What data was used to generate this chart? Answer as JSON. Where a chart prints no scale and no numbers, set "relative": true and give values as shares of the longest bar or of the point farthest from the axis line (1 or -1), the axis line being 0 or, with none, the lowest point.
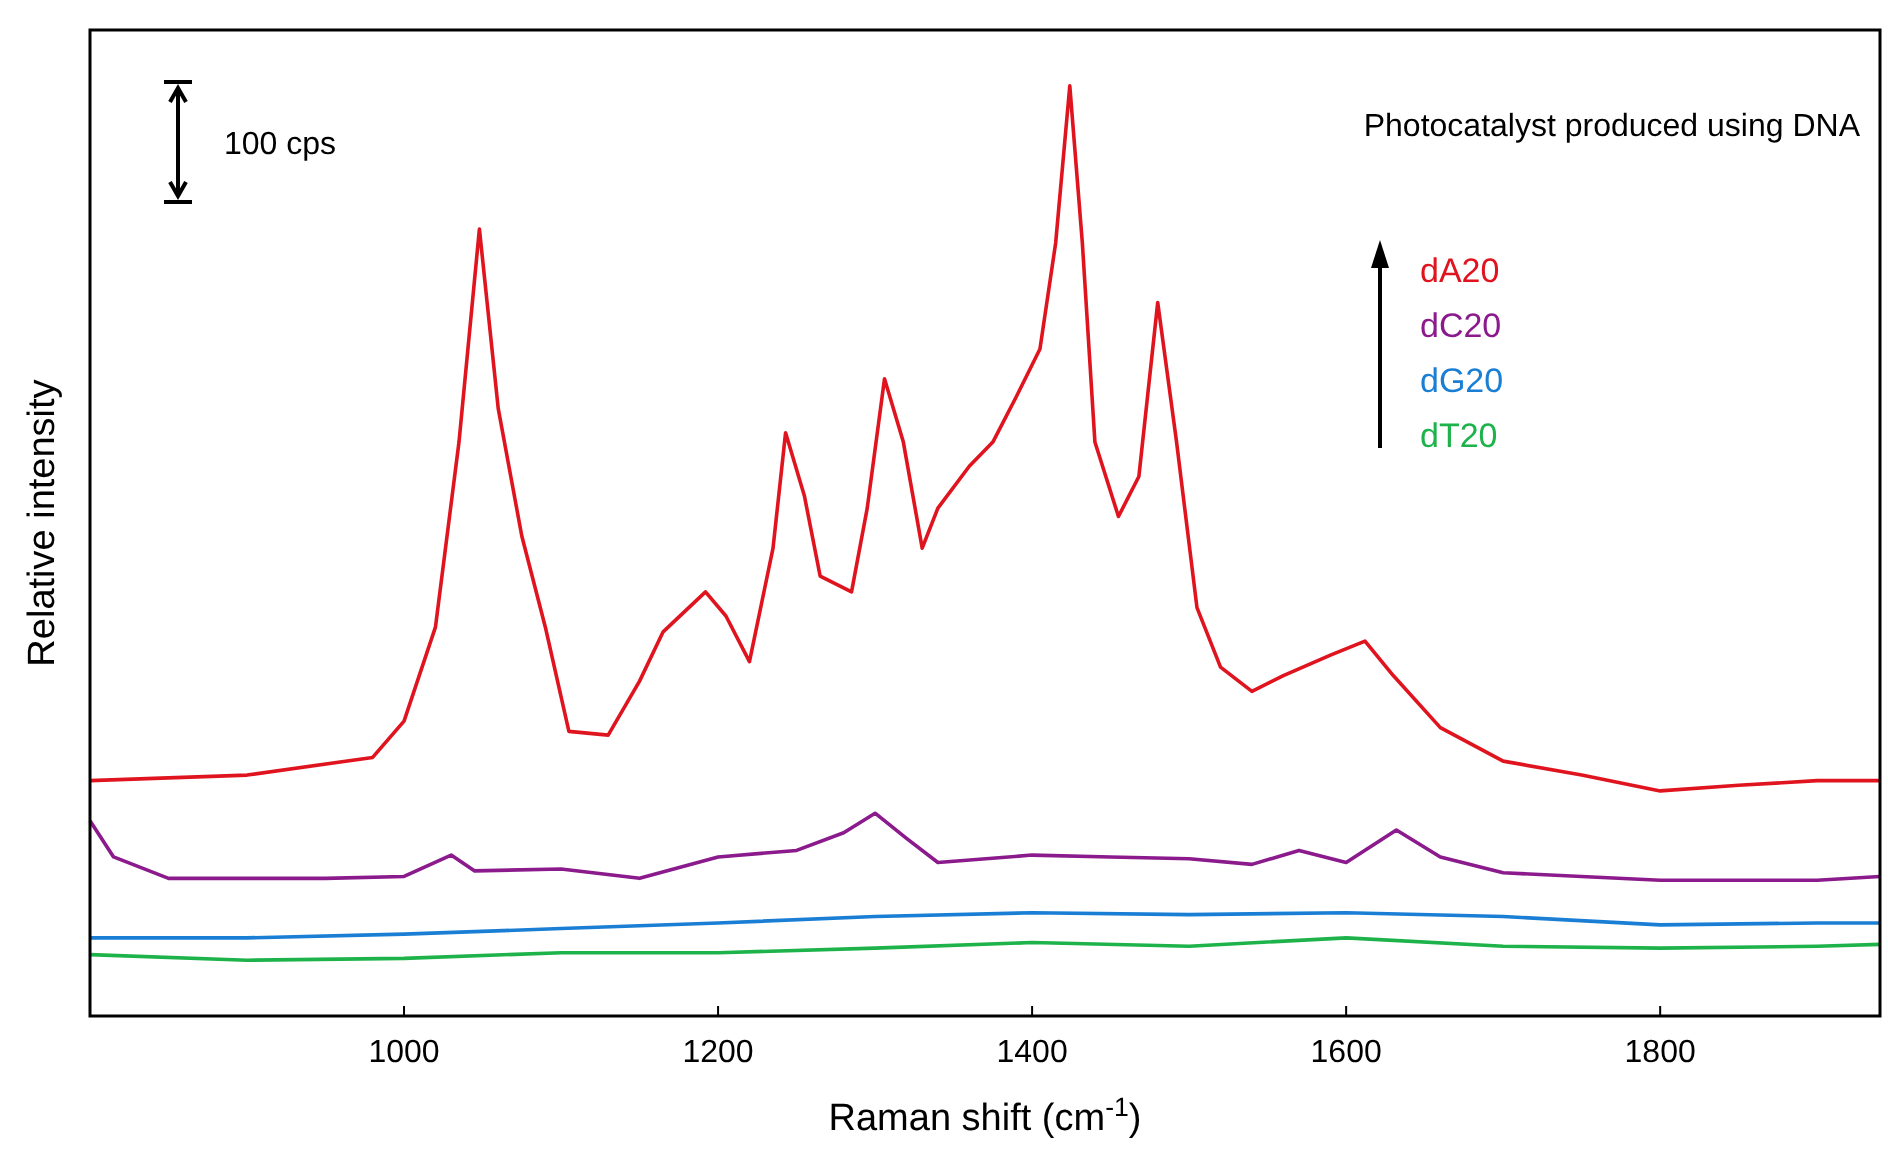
{
  "chart_data": {
    "type": "line",
    "xlabel": "Raman shift (cm$^{-1}$)",
    "ylabel": "Relative intensity",
    "relative": true,
    "xlim": [
      800,
      1940
    ],
    "xticks": [
      1000,
      1200,
      1400,
      1600,
      1800
    ],
    "tick_labels": "x",
    "grid": false,
    "legend": "right",
    "marker": "none",
    "line_style": "solid",
    "annotations": [
      "Photocatalyst produced using DNA",
      "100 cps"
    ],
    "series": [
      {
        "name": "dA20",
        "color": "#e0141e",
        "x": [
          800,
          900,
          980,
          1000,
          1020,
          1035,
          1048,
          1060,
          1075,
          1090,
          1105,
          1130,
          1150,
          1165,
          1192,
          1205,
          1220,
          1235,
          1243,
          1255,
          1265,
          1285,
          1295,
          1306,
          1318,
          1330,
          1340,
          1360,
          1375,
          1390,
          1405,
          1415,
          1424,
          1432,
          1440,
          1455,
          1468,
          1480,
          1492,
          1505,
          1520,
          1540,
          1560,
          1590,
          1612,
          1630,
          1660,
          1700,
          1750,
          1800,
          1850,
          1900,
          1940
        ],
        "values": [
          0.253,
          0.259,
          0.278,
          0.317,
          0.418,
          0.617,
          0.846,
          0.653,
          0.516,
          0.418,
          0.306,
          0.302,
          0.36,
          0.413,
          0.456,
          0.43,
          0.381,
          0.503,
          0.627,
          0.559,
          0.473,
          0.456,
          0.546,
          0.685,
          0.617,
          0.503,
          0.546,
          0.591,
          0.617,
          0.666,
          0.717,
          0.831,
          1.0,
          0.831,
          0.617,
          0.537,
          0.58,
          0.767,
          0.617,
          0.439,
          0.375,
          0.349,
          0.366,
          0.388,
          0.403,
          0.366,
          0.31,
          0.274,
          0.259,
          0.242,
          0.248,
          0.253,
          0.253
        ]
      },
      {
        "name": "dC20",
        "color": "#8b1a8c",
        "x": [
          800,
          815,
          850,
          950,
          1000,
          1030,
          1045,
          1100,
          1150,
          1200,
          1250,
          1280,
          1300,
          1320,
          1340,
          1400,
          1450,
          1500,
          1540,
          1570,
          1600,
          1632,
          1660,
          1700,
          1800,
          1900,
          1940
        ],
        "values": [
          0.21,
          0.171,
          0.148,
          0.148,
          0.15,
          0.173,
          0.156,
          0.158,
          0.148,
          0.171,
          0.178,
          0.197,
          0.218,
          0.191,
          0.165,
          0.173,
          0.171,
          0.169,
          0.163,
          0.178,
          0.165,
          0.2,
          0.171,
          0.154,
          0.146,
          0.146,
          0.15
        ]
      },
      {
        "name": "dG20",
        "color": "#1a7fd4",
        "x": [
          800,
          900,
          1000,
          1100,
          1200,
          1300,
          1400,
          1500,
          1600,
          1700,
          1800,
          1900,
          1940
        ],
        "values": [
          0.084,
          0.084,
          0.088,
          0.094,
          0.1,
          0.107,
          0.111,
          0.109,
          0.111,
          0.107,
          0.098,
          0.1,
          0.1
        ]
      },
      {
        "name": "dT20",
        "color": "#1db34a",
        "x": [
          800,
          900,
          1000,
          1100,
          1200,
          1300,
          1400,
          1500,
          1600,
          1700,
          1800,
          1900,
          1940
        ],
        "values": [
          0.066,
          0.06,
          0.062,
          0.068,
          0.068,
          0.073,
          0.079,
          0.075,
          0.084,
          0.075,
          0.073,
          0.075,
          0.077
        ]
      }
    ]
  }
}
